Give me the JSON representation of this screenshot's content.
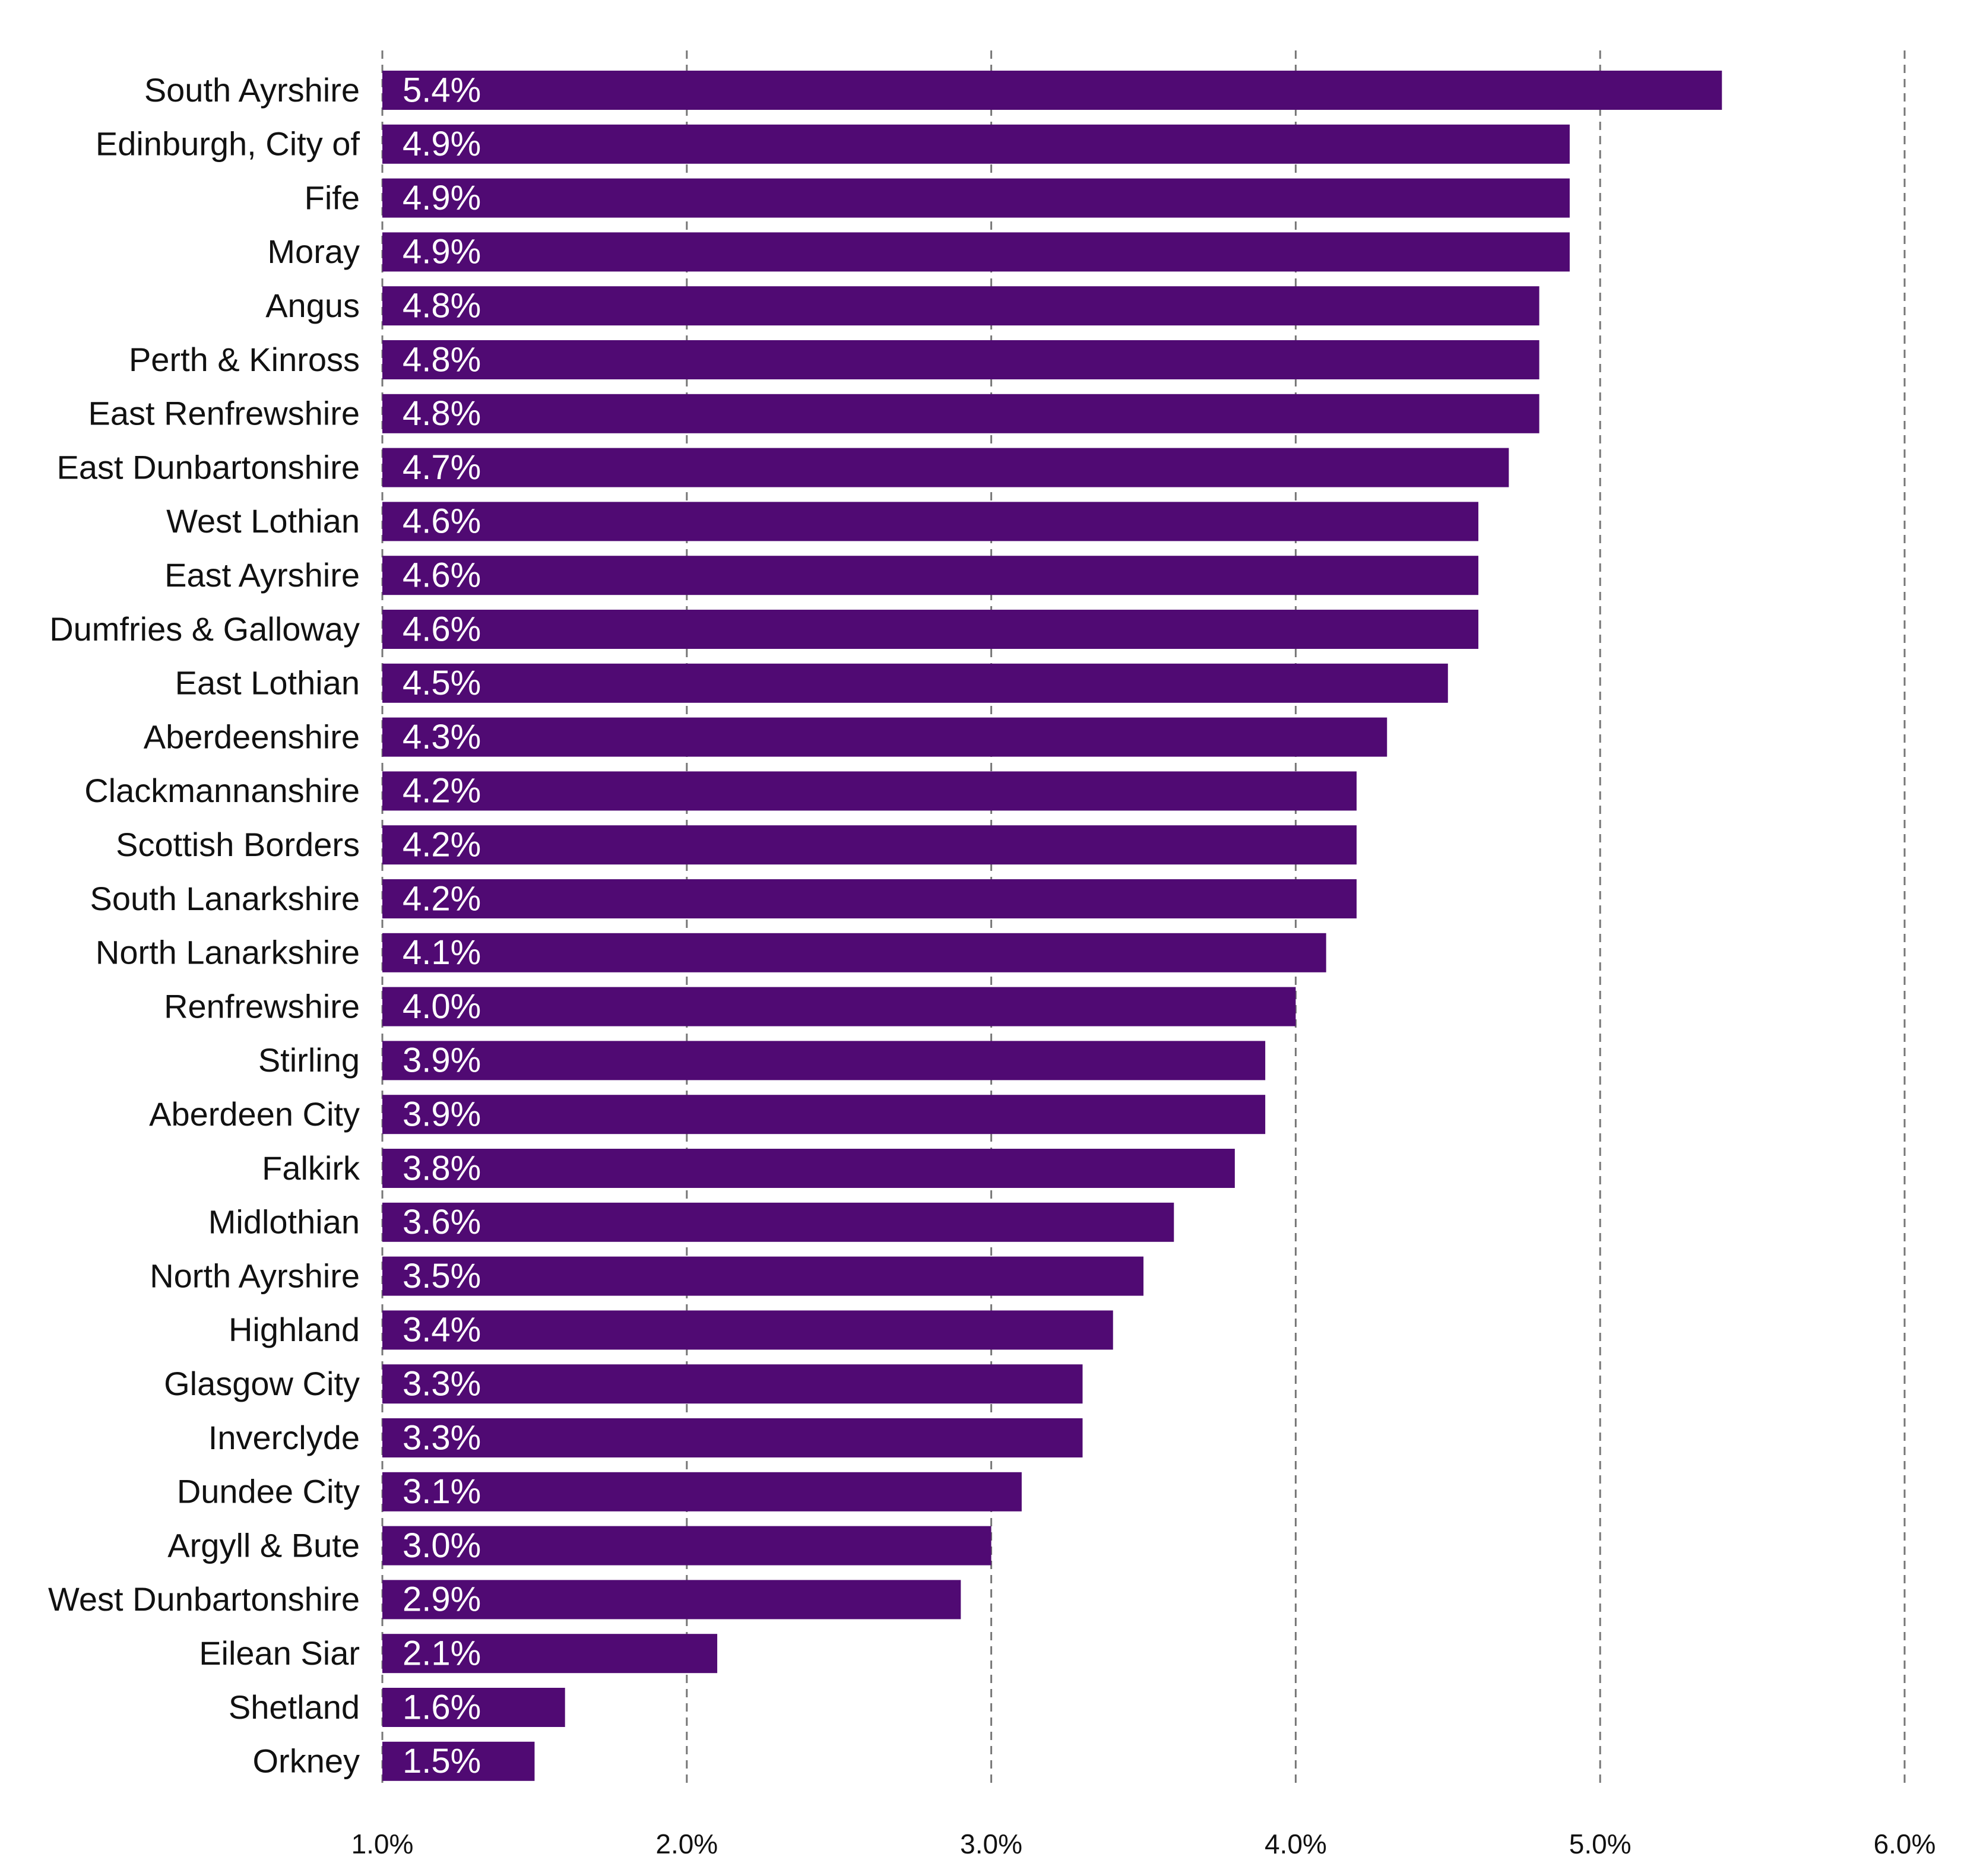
{
  "chart_data": {
    "type": "bar",
    "orientation": "horizontal",
    "categories": [
      "South Ayrshire",
      "Edinburgh, City of",
      "Fife",
      "Moray",
      "Angus",
      "Perth & Kinross",
      "East Renfrewshire",
      "East Dunbartonshire",
      "West Lothian",
      "East Ayrshire",
      "Dumfries & Galloway",
      "East Lothian",
      "Aberdeenshire",
      "Clackmannanshire",
      "Scottish Borders",
      "South Lanarkshire",
      "North Lanarkshire",
      "Renfrewshire",
      "Stirling",
      "Aberdeen City",
      "Falkirk",
      "Midlothian",
      "North Ayrshire",
      "Highland",
      "Glasgow City",
      "Inverclyde",
      "Dundee City",
      "Argyll & Bute",
      "West Dunbartonshire",
      "Eilean Siar",
      "Shetland",
      "Orkney"
    ],
    "values": [
      5.4,
      4.9,
      4.9,
      4.9,
      4.8,
      4.8,
      4.8,
      4.7,
      4.6,
      4.6,
      4.6,
      4.5,
      4.3,
      4.2,
      4.2,
      4.2,
      4.1,
      4.0,
      3.9,
      3.9,
      3.8,
      3.6,
      3.5,
      3.4,
      3.3,
      3.3,
      3.1,
      3.0,
      2.9,
      2.1,
      1.6,
      1.5
    ],
    "value_labels": [
      "5.4%",
      "4.9%",
      "4.9%",
      "4.9%",
      "4.8%",
      "4.8%",
      "4.8%",
      "4.7%",
      "4.6%",
      "4.6%",
      "4.6%",
      "4.5%",
      "4.3%",
      "4.2%",
      "4.2%",
      "4.2%",
      "4.1%",
      "4.0%",
      "3.9%",
      "3.9%",
      "3.8%",
      "3.6%",
      "3.5%",
      "3.4%",
      "3.3%",
      "3.3%",
      "3.1%",
      "3.0%",
      "2.9%",
      "2.1%",
      "1.6%",
      "1.5%"
    ],
    "color": "#500a73",
    "xlim": [
      1,
      6
    ],
    "xticks": [
      {
        "value": 1,
        "label": "1.0%"
      },
      {
        "value": 2,
        "label": "2.0%"
      },
      {
        "value": 3,
        "label": "3.0%"
      },
      {
        "value": 4,
        "label": "4.0%"
      },
      {
        "value": 5,
        "label": "5.0%"
      },
      {
        "value": 6,
        "label": "6.0%"
      }
    ],
    "grid": true
  }
}
